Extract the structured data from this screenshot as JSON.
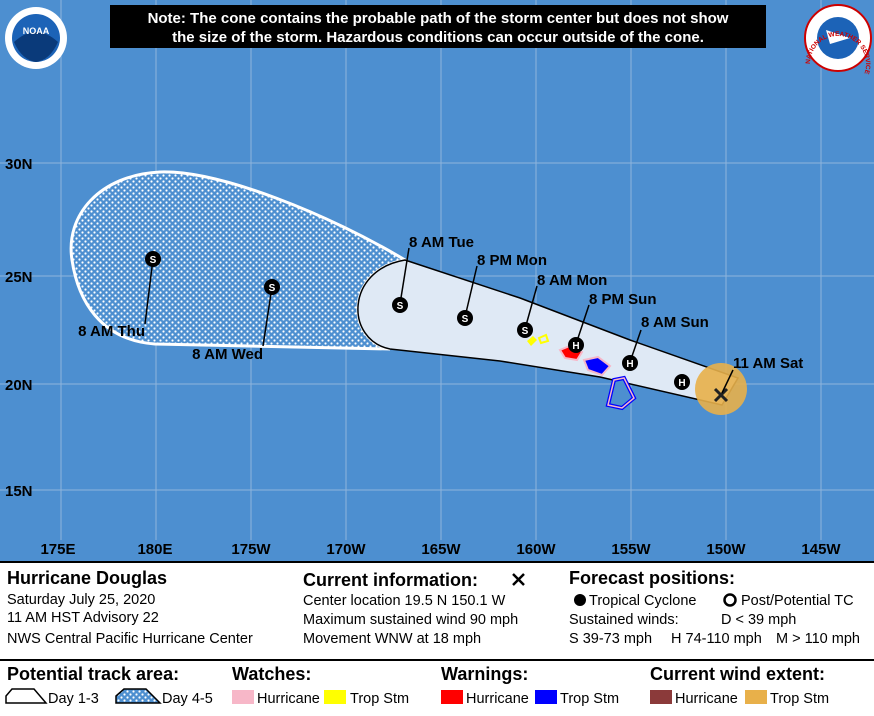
{
  "logos": {
    "noaa": "NOAA",
    "nws": "NATIONAL WEATHER SERVICE"
  },
  "note": [
    "Note: The cone contains the probable path of the storm center but does not show",
    "the size of the storm. Hazardous conditions can occur outside of the cone."
  ],
  "map": {
    "lat_labels": [
      "30N",
      "25N",
      "20N",
      "15N"
    ],
    "lon_labels": [
      "175E",
      "180E",
      "175W",
      "170W",
      "165W",
      "160W",
      "155W",
      "150W",
      "145W"
    ],
    "current_position": {
      "label": "11 AM Sat"
    },
    "forecast_points": [
      {
        "symbol": "H"
      },
      {
        "symbol": "H",
        "label": "8 AM Sun"
      },
      {
        "symbol": "H",
        "label": "8 PM Sun"
      },
      {
        "symbol": "S",
        "label": "8 AM Mon"
      },
      {
        "symbol": "S",
        "label": "8 PM Mon"
      },
      {
        "symbol": "S",
        "label": "8 AM Tue"
      },
      {
        "symbol": "S",
        "label": "8 AM Wed"
      },
      {
        "symbol": "S",
        "label": "8 AM Thu"
      }
    ]
  },
  "storm": {
    "name": "Hurricane Douglas",
    "date": "Saturday July 25, 2020",
    "advisory": "11 AM HST Advisory 22",
    "center": "NWS Central Pacific Hurricane Center"
  },
  "current_information": {
    "title": "Current information:",
    "lines": [
      "Center location 19.5 N 150.1 W",
      "Maximum sustained wind 90 mph",
      "Movement WNW at 18 mph"
    ]
  },
  "forecast_positions": {
    "title": "Forecast positions:",
    "tropical_cyclone": "Tropical Cyclone",
    "post_tc": "Post/Potential TC",
    "sustained_winds": "Sustained winds:",
    "d": "D < 39 mph",
    "s": "S 39-73 mph",
    "h": "H 74-110 mph",
    "m": "M > 110 mph"
  },
  "legend": {
    "track_area": {
      "title": "Potential track area:",
      "day13": "Day 1-3",
      "day45": "Day 4-5"
    },
    "watches": {
      "title": "Watches:",
      "items": [
        "Hurricane",
        "Trop Stm"
      ]
    },
    "warnings": {
      "title": "Warnings:",
      "items": [
        "Hurricane",
        "Trop Stm"
      ]
    },
    "wind_extent": {
      "title": "Current wind extent:",
      "items": [
        "Hurricane",
        "Trop Stm"
      ]
    }
  }
}
